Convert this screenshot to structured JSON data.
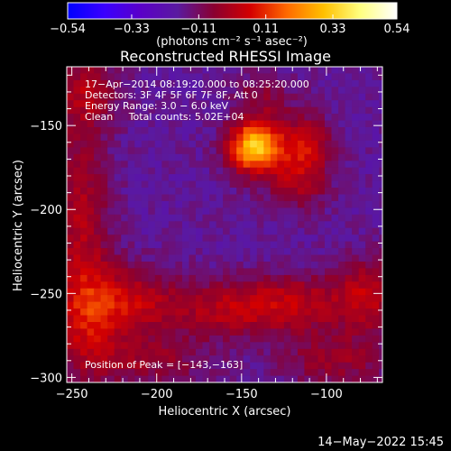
{
  "chart_data": {
    "type": "heatmap",
    "title": "Reconstructed RHESSI Image",
    "xlabel": "Heliocentric X (arcsec)",
    "ylabel": "Heliocentric Y (arcsec)",
    "xlim": [
      -253,
      -67
    ],
    "ylim": [
      -303,
      -115
    ],
    "x_ticks": [
      -250,
      -200,
      -150,
      -100
    ],
    "y_ticks": [
      -300,
      -250,
      -200,
      -150
    ],
    "x_tick_labels": [
      "−250",
      "−200",
      "−150",
      "−100"
    ],
    "y_tick_labels": [
      "−300",
      "−250",
      "−200",
      "−150"
    ],
    "colorbar": {
      "range": [
        -0.54,
        0.54
      ],
      "ticks": [
        -0.54,
        -0.33,
        -0.11,
        0.11,
        0.33,
        0.54
      ],
      "tick_labels": [
        "−0.54",
        "−0.33",
        "−0.11",
        "0.11",
        "0.33",
        "0.54"
      ],
      "unit_label": "(photons cm⁻² s⁻¹ asec⁻²)",
      "colors": [
        "#0000ff",
        "#3a00ff",
        "#5a00c8",
        "#5a1aa0",
        "#8a0030",
        "#d40000",
        "#ff6a00",
        "#ffc000",
        "#ffff80",
        "#ffffff"
      ]
    },
    "info_lines": [
      "17−Apr−2014 08:19:20.000 to 08:25:20.000",
      "Detectors: 3F 4F 5F 6F 7F 8F, Att 0",
      "Energy Range: 3.0 − 6.0 keV",
      "Clean     Total counts: 5.02E+04"
    ],
    "peak_label": "Position of Peak = [−143,−163]",
    "peak": {
      "x": -143,
      "y": -163,
      "value": 0.54
    },
    "sources": [
      {
        "x": -143,
        "y": -163,
        "sx": 10,
        "sy": 10,
        "amp": 0.4
      },
      {
        "x": -130,
        "y": -160,
        "sx": 18,
        "sy": 18,
        "amp": 0.12
      },
      {
        "x": -115,
        "y": -180,
        "sx": 12,
        "sy": 14,
        "amp": 0.14
      },
      {
        "x": -140,
        "y": -130,
        "sx": 9,
        "sy": 9,
        "amp": 0.08
      },
      {
        "x": -110,
        "y": -160,
        "sx": 9,
        "sy": 10,
        "amp": 0.1
      }
    ],
    "background_level": -0.17,
    "red_regions": [
      {
        "x": -242,
        "y": -130,
        "sx": 14,
        "sy": 14,
        "amp": 0.14
      },
      {
        "x": -245,
        "y": -205,
        "sx": 12,
        "sy": 45,
        "amp": 0.16
      },
      {
        "x": -215,
        "y": -255,
        "sx": 18,
        "sy": 14,
        "amp": 0.16
      },
      {
        "x": -240,
        "y": -265,
        "sx": 15,
        "sy": 22,
        "amp": 0.17
      },
      {
        "x": -160,
        "y": -260,
        "sx": 28,
        "sy": 12,
        "amp": 0.15
      },
      {
        "x": -115,
        "y": -255,
        "sx": 28,
        "sy": 12,
        "amp": 0.15
      },
      {
        "x": -75,
        "y": -250,
        "sx": 12,
        "sy": 16,
        "amp": 0.15
      },
      {
        "x": -95,
        "y": -290,
        "sx": 22,
        "sy": 12,
        "amp": 0.13
      },
      {
        "x": -205,
        "y": -290,
        "sx": 25,
        "sy": 10,
        "amp": 0.12
      }
    ]
  },
  "footer": {
    "timestamp": "14−May−2022 15:45"
  }
}
